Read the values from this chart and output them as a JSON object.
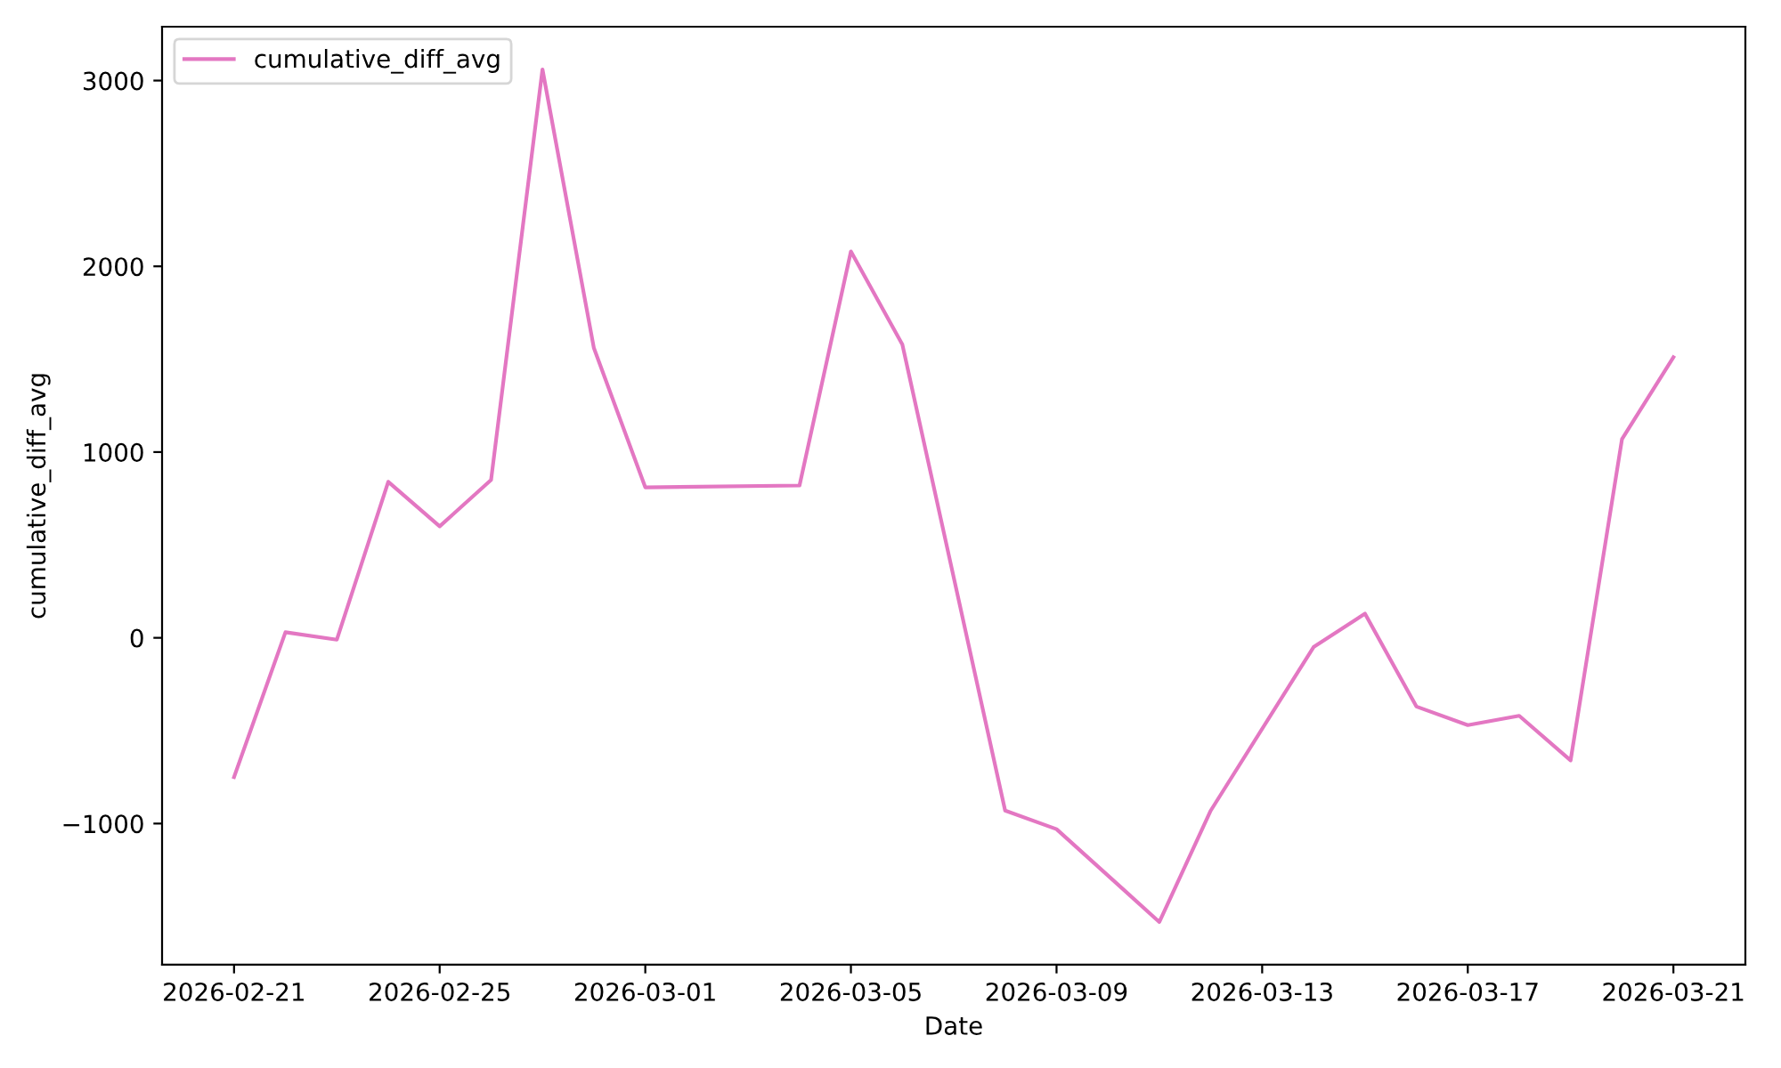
{
  "chart_data": {
    "type": "line",
    "xlabel": "Date",
    "ylabel": "cumulative_diff_avg",
    "x": [
      "2026-02-21",
      "2026-02-22",
      "2026-02-23",
      "2026-02-24",
      "2026-02-25",
      "2026-02-26",
      "2026-02-27",
      "2026-02-28",
      "2026-03-01",
      "2026-03-04",
      "2026-03-05",
      "2026-03-06",
      "2026-03-08",
      "2026-03-09",
      "2026-03-11",
      "2026-03-12",
      "2026-03-14",
      "2026-03-15",
      "2026-03-16",
      "2026-03-17",
      "2026-03-18",
      "2026-03-19",
      "2026-03-20",
      "2026-03-21"
    ],
    "series": [
      {
        "name": "cumulative_diff_avg",
        "color": "#e377c2",
        "values": [
          -750,
          30,
          -10,
          840,
          600,
          850,
          3060,
          1560,
          810,
          820,
          2080,
          1580,
          -930,
          -1030,
          -1530,
          -930,
          -50,
          130,
          -370,
          -470,
          -420,
          -660,
          1070,
          1510
        ]
      }
    ],
    "xlim": [
      "2026-02-19T14:24",
      "2026-03-22T09:36"
    ],
    "xticks": [
      "2026-02-21",
      "2026-02-25",
      "2026-03-01",
      "2026-03-05",
      "2026-03-09",
      "2026-03-13",
      "2026-03-17",
      "2026-03-21"
    ],
    "ylim": [
      -1760,
      3290
    ],
    "yticks": [
      {
        "value": -1000,
        "label": "−1000"
      },
      0,
      1000,
      2000,
      3000
    ],
    "legend": "top left",
    "grid": false,
    "marker": "none",
    "line_style": "solid"
  }
}
